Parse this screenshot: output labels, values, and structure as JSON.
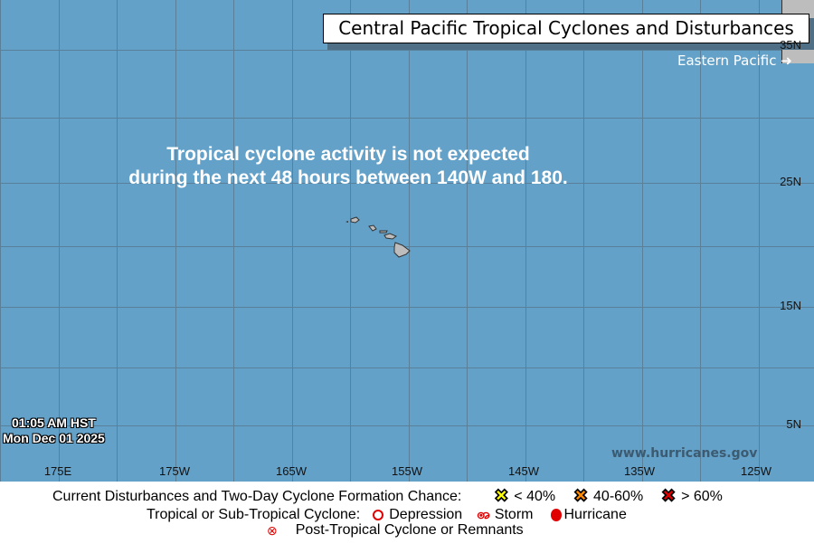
{
  "title": "Central Pacific Tropical Cyclones and Disturbances",
  "eastern_pacific_link": "Eastern Pacific",
  "message": {
    "line1": "Tropical cyclone activity is not expected",
    "line2": "during the next 48 hours between 140W and 180."
  },
  "latitudes": [
    "35N",
    "25N",
    "15N",
    "5N"
  ],
  "longitudes": [
    "175E",
    "175W",
    "165W",
    "155W",
    "145W",
    "135W",
    "125W"
  ],
  "timestamp": {
    "time": "01:05 AM HST",
    "date": "Mon Dec 01 2025"
  },
  "website": "www.hurricanes.gov",
  "legend": {
    "disturbances_label": "Current Disturbances and Two-Day Cyclone Formation Chance:",
    "low": "< 40%",
    "medium": "40-60%",
    "high": "> 60%",
    "low_color": "#ffff00",
    "medium_color": "#ff8c00",
    "high_color": "#e00000",
    "cyclone_label": "Tropical or Sub-Tropical Cyclone:",
    "depression": "Depression",
    "storm": "Storm",
    "hurricane": "Hurricane",
    "post_tropical": "Post-Tropical Cyclone or Remnants"
  }
}
